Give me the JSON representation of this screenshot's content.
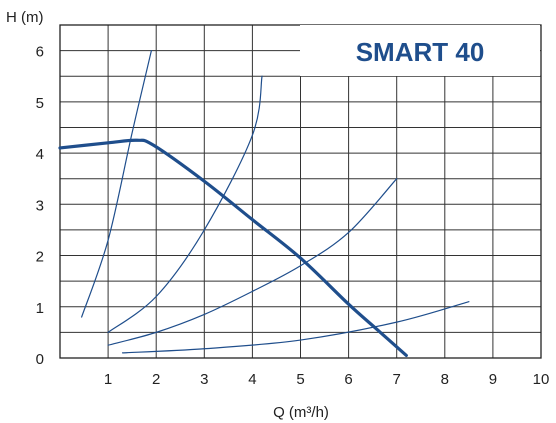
{
  "chart_data": {
    "type": "line",
    "title": "SMART 40",
    "xlabel": "Q (m³/h)",
    "ylabel": "H (m)",
    "xlim": [
      0,
      10
    ],
    "ylim": [
      0,
      6.5
    ],
    "x_ticks": [
      1,
      2,
      3,
      4,
      5,
      6,
      7,
      8,
      9,
      10
    ],
    "y_ticks": [
      0,
      1,
      2,
      3,
      4,
      5,
      6
    ],
    "grid": true,
    "line_color": "#1f4e8c",
    "series": [
      {
        "role": "pump-curve",
        "points": [
          [
            0,
            4.1
          ],
          [
            1.0,
            4.2
          ],
          [
            1.6,
            4.25
          ],
          [
            1.95,
            4.15
          ],
          [
            3.0,
            3.45
          ],
          [
            4.0,
            2.7
          ],
          [
            5.0,
            1.95
          ],
          [
            6.0,
            1.05
          ],
          [
            6.6,
            0.55
          ],
          [
            7.2,
            0.05
          ]
        ]
      },
      {
        "role": "system-curve",
        "points": [
          [
            0.45,
            0.8
          ],
          [
            1.0,
            2.3
          ],
          [
            1.5,
            4.4
          ],
          [
            1.9,
            6.0
          ]
        ]
      },
      {
        "role": "system-curve",
        "points": [
          [
            1.0,
            0.5
          ],
          [
            2.0,
            1.2
          ],
          [
            3.0,
            2.5
          ],
          [
            4.0,
            4.35
          ],
          [
            4.2,
            5.5
          ]
        ]
      },
      {
        "role": "system-curve",
        "points": [
          [
            1.0,
            0.25
          ],
          [
            2.0,
            0.5
          ],
          [
            3.0,
            0.85
          ],
          [
            4.0,
            1.3
          ],
          [
            5.0,
            1.8
          ],
          [
            6.0,
            2.45
          ],
          [
            7.0,
            3.5
          ]
        ]
      },
      {
        "role": "system-curve",
        "points": [
          [
            1.3,
            0.1
          ],
          [
            3.0,
            0.18
          ],
          [
            5.0,
            0.35
          ],
          [
            7.0,
            0.7
          ],
          [
            8.5,
            1.1
          ]
        ]
      }
    ]
  }
}
